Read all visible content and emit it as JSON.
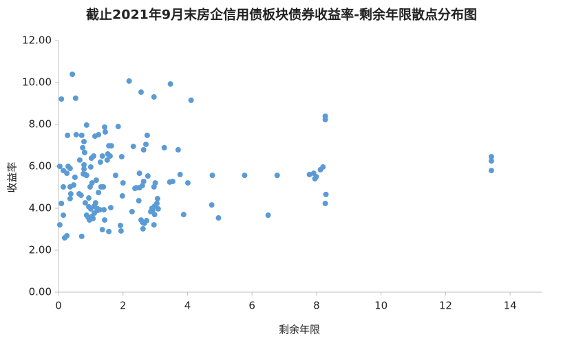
{
  "chart_data": {
    "type": "scatter",
    "title": "截止2021年9月末房企信用债板块债券收益率-剩余年限散点分布图",
    "x_label": "剩余年限",
    "y_label": "收益率",
    "color": "#5b9bd5",
    "xlim": [
      0,
      15
    ],
    "xticks": [
      0,
      2,
      4,
      6,
      8,
      10,
      12,
      14
    ],
    "ylim": [
      0,
      12
    ],
    "yticks": [
      {
        "value": 0,
        "label": "0.00"
      },
      {
        "value": 2,
        "label": "2.00"
      },
      {
        "value": 4,
        "label": "4.00"
      },
      {
        "value": 6,
        "label": "6.00"
      },
      {
        "value": 8,
        "label": "8.00"
      },
      {
        "value": 10,
        "label": "10.00"
      },
      {
        "value": 12,
        "label": "12.00"
      }
    ],
    "x": [
      0.04,
      0.04,
      0.09,
      0.09,
      0.15,
      0.15,
      0.15,
      0.19,
      0.26,
      0.26,
      0.28,
      0.3,
      0.36,
      0.36,
      0.36,
      0.38,
      0.43,
      0.47,
      0.51,
      0.53,
      0.55,
      0.64,
      0.66,
      0.7,
      0.72,
      0.72,
      0.75,
      0.77,
      0.79,
      0.79,
      0.79,
      0.81,
      0.83,
      0.83,
      0.87,
      0.87,
      0.87,
      0.92,
      0.94,
      0.94,
      0.96,
      0.96,
      0.98,
      1.0,
      1.0,
      1.02,
      1.04,
      1.04,
      1.07,
      1.09,
      1.11,
      1.11,
      1.13,
      1.15,
      1.17,
      1.19,
      1.21,
      1.24,
      1.24,
      1.28,
      1.3,
      1.32,
      1.36,
      1.36,
      1.39,
      1.41,
      1.43,
      1.43,
      1.45,
      1.51,
      1.53,
      1.56,
      1.56,
      1.6,
      1.62,
      1.64,
      1.77,
      1.85,
      1.92,
      1.94,
      1.96,
      1.98,
      2.0,
      2.19,
      2.28,
      2.32,
      2.37,
      2.41,
      2.49,
      2.51,
      2.51,
      2.56,
      2.56,
      2.6,
      2.6,
      2.62,
      2.64,
      2.64,
      2.66,
      2.71,
      2.73,
      2.75,
      2.77,
      2.86,
      2.9,
      2.92,
      2.96,
      2.96,
      2.96,
      2.98,
      2.98,
      3.0,
      3.05,
      3.07,
      3.09,
      3.28,
      3.47,
      3.45,
      3.54,
      3.71,
      3.77,
      3.88,
      4.01,
      4.11,
      4.75,
      4.77,
      4.96,
      5.77,
      6.5,
      6.78,
      7.78,
      7.91,
      7.95,
      7.99,
      8.12,
      8.2,
      8.27,
      8.27,
      8.29,
      8.27,
      13.42,
      13.42,
      13.42
    ],
    "values": [
      6.0,
      3.21,
      9.21,
      4.23,
      5.8,
      5.02,
      3.67,
      2.59,
      2.69,
      5.67,
      7.48,
      6.0,
      5.9,
      5.02,
      4.46,
      4.69,
      10.39,
      5.11,
      5.48,
      9.25,
      7.51,
      4.69,
      6.3,
      4.62,
      2.66,
      7.48,
      6.89,
      5.64,
      7.18,
      6.07,
      5.87,
      6.66,
      5.61,
      4.26,
      7.97,
      5.57,
      3.67,
      3.57,
      4.49,
      4.07,
      3.51,
      3.44,
      5.02,
      5.97,
      3.97,
      6.39,
      5.21,
      3.61,
      3.51,
      6.49,
      4.1,
      3.77,
      7.44,
      4.26,
      5.34,
      4.0,
      3.9,
      7.51,
      4.75,
      3.93,
      6.2,
      5.02,
      6.49,
      2.98,
      5.02,
      3.93,
      7.87,
      3.44,
      7.64,
      6.3,
      6.59,
      2.89,
      6.98,
      6.49,
      4.03,
      6.98,
      5.57,
      7.9,
      3.18,
      2.92,
      6.46,
      4.59,
      5.21,
      10.07,
      3.84,
      6.95,
      4.95,
      4.98,
      4.36,
      5.67,
      4.98,
      9.54,
      3.44,
      5.08,
      3.34,
      3.02,
      5.28,
      6.79,
      3.28,
      7.05,
      3.41,
      7.48,
      5.54,
      3.84,
      4.0,
      3.9,
      9.31,
      3.21,
      5.02,
      4.1,
      3.7,
      5.21,
      4.23,
      4.46,
      3.97,
      6.89,
      9.93,
      5.25,
      5.28,
      6.79,
      5.61,
      3.7,
      5.21,
      9.15,
      4.16,
      5.57,
      3.54,
      5.57,
      3.67,
      5.57,
      5.61,
      5.67,
      5.41,
      5.51,
      5.84,
      5.97,
      8.39,
      8.23,
      4.66,
      4.23,
      6.46,
      6.26,
      5.8
    ]
  }
}
